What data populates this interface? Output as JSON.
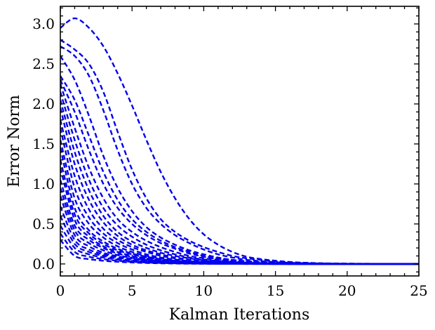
{
  "chart_data": {
    "type": "line",
    "title": "",
    "xlabel": "Kalman Iterations",
    "ylabel": "Error Norm",
    "xlim": [
      0,
      25
    ],
    "ylim": [
      -0.15,
      3.22
    ],
    "xticks": [
      "0",
      "5",
      "10",
      "15",
      "20",
      "25"
    ],
    "xtick_values": [
      0,
      5,
      10,
      15,
      20,
      25
    ],
    "yticks": [
      "0.0",
      "0.5",
      "1.0",
      "1.5",
      "2.0",
      "2.5",
      "3.0"
    ],
    "ytick_values": [
      0.0,
      0.5,
      1.0,
      1.5,
      2.0,
      2.5,
      3.0
    ],
    "line_color": "#0000ee",
    "line_style": "dashed",
    "grid": false,
    "x": [
      0,
      1,
      2,
      3,
      4,
      5,
      6,
      7,
      8,
      9,
      10,
      11,
      12,
      13,
      14,
      15,
      16,
      17,
      18,
      19,
      20,
      21,
      22,
      23,
      24,
      25
    ],
    "series": [
      {
        "values": [
          2.95,
          3.07,
          2.95,
          2.72,
          2.38,
          1.98,
          1.55,
          1.15,
          0.82,
          0.56,
          0.37,
          0.24,
          0.15,
          0.09,
          0.06,
          0.04,
          0.025,
          0.015,
          0.01,
          0.006,
          0.004,
          0.003,
          0.002,
          0.001,
          0.001,
          0.0
        ]
      },
      {
        "values": [
          2.8,
          2.68,
          2.5,
          2.15,
          1.65,
          1.18,
          0.82,
          0.56,
          0.4,
          0.29,
          0.21,
          0.15,
          0.1,
          0.07,
          0.05,
          0.03,
          0.02,
          0.013,
          0.008,
          0.005,
          0.003,
          0.002,
          0.001,
          0.001,
          0.0,
          0.0
        ]
      },
      {
        "values": [
          2.72,
          2.6,
          2.35,
          1.92,
          1.42,
          1.0,
          0.7,
          0.5,
          0.36,
          0.26,
          0.18,
          0.12,
          0.08,
          0.05,
          0.035,
          0.022,
          0.014,
          0.009,
          0.006,
          0.004,
          0.002,
          0.001,
          0.001,
          0.0,
          0.0,
          0.0
        ]
      },
      {
        "values": [
          2.6,
          2.3,
          1.85,
          1.35,
          0.95,
          0.66,
          0.46,
          0.33,
          0.24,
          0.17,
          0.12,
          0.08,
          0.05,
          0.035,
          0.022,
          0.014,
          0.009,
          0.006,
          0.004,
          0.002,
          0.001,
          0.001,
          0.0,
          0.0,
          0.0,
          0.0
        ]
      },
      {
        "values": [
          2.35,
          2.05,
          1.6,
          1.15,
          0.8,
          0.56,
          0.4,
          0.29,
          0.21,
          0.15,
          0.1,
          0.07,
          0.05,
          0.03,
          0.02,
          0.013,
          0.008,
          0.005,
          0.003,
          0.002,
          0.001,
          0.001,
          0.0,
          0.0,
          0.0,
          0.0
        ]
      },
      {
        "values": [
          2.3,
          1.9,
          1.42,
          1.0,
          0.7,
          0.5,
          0.36,
          0.26,
          0.19,
          0.13,
          0.09,
          0.06,
          0.04,
          0.025,
          0.016,
          0.01,
          0.006,
          0.004,
          0.002,
          0.001,
          0.001,
          0.0,
          0.0,
          0.0,
          0.0,
          0.0
        ]
      },
      {
        "values": [
          2.25,
          1.7,
          1.2,
          0.82,
          0.56,
          0.4,
          0.29,
          0.21,
          0.15,
          0.1,
          0.07,
          0.05,
          0.03,
          0.02,
          0.013,
          0.008,
          0.005,
          0.003,
          0.002,
          0.001,
          0.001,
          0.0,
          0.0,
          0.0,
          0.0,
          0.0
        ]
      },
      {
        "values": [
          2.15,
          1.55,
          1.05,
          0.7,
          0.48,
          0.34,
          0.24,
          0.17,
          0.12,
          0.08,
          0.055,
          0.035,
          0.022,
          0.014,
          0.009,
          0.006,
          0.004,
          0.002,
          0.001,
          0.001,
          0.0,
          0.0,
          0.0,
          0.0,
          0.0,
          0.0
        ]
      },
      {
        "values": [
          2.05,
          1.4,
          0.92,
          0.6,
          0.4,
          0.28,
          0.2,
          0.14,
          0.1,
          0.07,
          0.045,
          0.03,
          0.02,
          0.012,
          0.008,
          0.005,
          0.003,
          0.002,
          0.001,
          0.0,
          0.0,
          0.0,
          0.0,
          0.0,
          0.0,
          0.0
        ]
      },
      {
        "values": [
          1.95,
          1.25,
          0.8,
          0.52,
          0.35,
          0.24,
          0.17,
          0.12,
          0.08,
          0.055,
          0.035,
          0.022,
          0.014,
          0.009,
          0.006,
          0.004,
          0.002,
          0.001,
          0.001,
          0.0,
          0.0,
          0.0,
          0.0,
          0.0,
          0.0,
          0.0
        ]
      },
      {
        "values": [
          1.8,
          1.1,
          0.68,
          0.44,
          0.3,
          0.21,
          0.15,
          0.1,
          0.07,
          0.045,
          0.03,
          0.02,
          0.012,
          0.008,
          0.005,
          0.003,
          0.002,
          0.001,
          0.0,
          0.0,
          0.0,
          0.0,
          0.0,
          0.0,
          0.0,
          0.0
        ]
      },
      {
        "values": [
          1.7,
          0.95,
          0.58,
          0.38,
          0.26,
          0.18,
          0.12,
          0.08,
          0.055,
          0.035,
          0.022,
          0.014,
          0.009,
          0.006,
          0.004,
          0.002,
          0.001,
          0.001,
          0.0,
          0.0,
          0.0,
          0.0,
          0.0,
          0.0,
          0.0,
          0.0
        ]
      },
      {
        "values": [
          1.55,
          0.82,
          0.5,
          0.33,
          0.22,
          0.15,
          0.1,
          0.07,
          0.045,
          0.03,
          0.02,
          0.012,
          0.008,
          0.005,
          0.003,
          0.002,
          0.001,
          0.0,
          0.0,
          0.0,
          0.0,
          0.0,
          0.0,
          0.0,
          0.0,
          0.0
        ]
      },
      {
        "values": [
          1.45,
          0.7,
          0.42,
          0.28,
          0.19,
          0.13,
          0.09,
          0.06,
          0.04,
          0.025,
          0.016,
          0.01,
          0.006,
          0.004,
          0.002,
          0.001,
          0.001,
          0.0,
          0.0,
          0.0,
          0.0,
          0.0,
          0.0,
          0.0,
          0.0,
          0.0
        ]
      },
      {
        "values": [
          1.3,
          0.62,
          0.38,
          0.25,
          0.17,
          0.12,
          0.08,
          0.055,
          0.035,
          0.022,
          0.014,
          0.009,
          0.006,
          0.004,
          0.002,
          0.001,
          0.0,
          0.0,
          0.0,
          0.0,
          0.0,
          0.0,
          0.0,
          0.0,
          0.0,
          0.0
        ]
      },
      {
        "values": [
          1.2,
          0.55,
          0.34,
          0.22,
          0.15,
          0.1,
          0.07,
          0.045,
          0.03,
          0.02,
          0.012,
          0.008,
          0.005,
          0.003,
          0.002,
          0.001,
          0.0,
          0.0,
          0.0,
          0.0,
          0.0,
          0.0,
          0.0,
          0.0,
          0.0,
          0.0
        ]
      },
      {
        "values": [
          1.05,
          0.48,
          0.3,
          0.2,
          0.13,
          0.09,
          0.06,
          0.04,
          0.025,
          0.016,
          0.01,
          0.006,
          0.004,
          0.002,
          0.001,
          0.001,
          0.0,
          0.0,
          0.0,
          0.0,
          0.0,
          0.0,
          0.0,
          0.0,
          0.0,
          0.0
        ]
      },
      {
        "values": [
          0.95,
          0.42,
          0.26,
          0.17,
          0.11,
          0.075,
          0.05,
          0.033,
          0.022,
          0.014,
          0.009,
          0.006,
          0.004,
          0.002,
          0.001,
          0.0,
          0.0,
          0.0,
          0.0,
          0.0,
          0.0,
          0.0,
          0.0,
          0.0,
          0.0,
          0.0
        ]
      },
      {
        "values": [
          0.85,
          0.36,
          0.22,
          0.14,
          0.095,
          0.065,
          0.044,
          0.03,
          0.02,
          0.013,
          0.008,
          0.005,
          0.003,
          0.002,
          0.001,
          0.0,
          0.0,
          0.0,
          0.0,
          0.0,
          0.0,
          0.0,
          0.0,
          0.0,
          0.0,
          0.0
        ]
      },
      {
        "values": [
          0.72,
          0.3,
          0.18,
          0.12,
          0.08,
          0.055,
          0.037,
          0.025,
          0.016,
          0.01,
          0.006,
          0.004,
          0.002,
          0.001,
          0.001,
          0.0,
          0.0,
          0.0,
          0.0,
          0.0,
          0.0,
          0.0,
          0.0,
          0.0,
          0.0,
          0.0
        ]
      },
      {
        "values": [
          0.6,
          0.25,
          0.15,
          0.1,
          0.066,
          0.045,
          0.03,
          0.02,
          0.013,
          0.008,
          0.005,
          0.003,
          0.002,
          0.001,
          0.0,
          0.0,
          0.0,
          0.0,
          0.0,
          0.0,
          0.0,
          0.0,
          0.0,
          0.0,
          0.0,
          0.0
        ]
      },
      {
        "values": [
          0.48,
          0.2,
          0.12,
          0.08,
          0.053,
          0.036,
          0.024,
          0.016,
          0.01,
          0.006,
          0.004,
          0.002,
          0.001,
          0.001,
          0.0,
          0.0,
          0.0,
          0.0,
          0.0,
          0.0,
          0.0,
          0.0,
          0.0,
          0.0,
          0.0,
          0.0
        ]
      },
      {
        "values": [
          0.38,
          0.15,
          0.09,
          0.06,
          0.04,
          0.027,
          0.018,
          0.012,
          0.008,
          0.005,
          0.003,
          0.002,
          0.001,
          0.0,
          0.0,
          0.0,
          0.0,
          0.0,
          0.0,
          0.0,
          0.0,
          0.0,
          0.0,
          0.0,
          0.0,
          0.0
        ]
      },
      {
        "values": [
          0.3,
          0.1,
          0.06,
          0.04,
          0.027,
          0.018,
          0.012,
          0.008,
          0.005,
          0.003,
          0.002,
          0.001,
          0.001,
          0.0,
          0.0,
          0.0,
          0.0,
          0.0,
          0.0,
          0.0,
          0.0,
          0.0,
          0.0,
          0.0,
          0.0,
          0.0
        ]
      }
    ]
  }
}
